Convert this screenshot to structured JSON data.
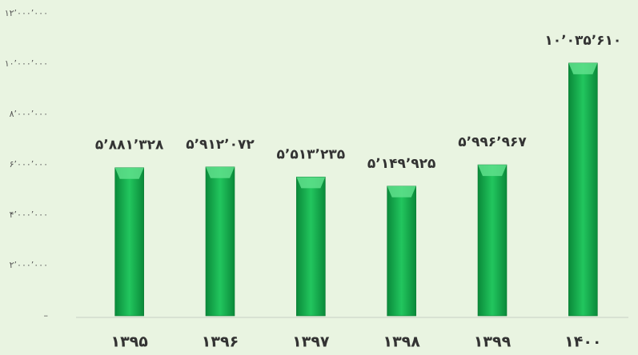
{
  "chart_data": {
    "type": "bar",
    "categories": [
      "۱۳۹۵",
      "۱۳۹۶",
      "۱۳۹۷",
      "۱۳۹۸",
      "۱۳۹۹",
      "۱۴۰۰"
    ],
    "values": [
      5881328,
      5912072,
      5513235,
      5149925,
      5996967,
      10035610
    ],
    "value_labels": [
      "۵٬۸۸۱٬۳۲۸",
      "۵٬۹۱۲٬۰۷۲",
      "۵٬۵۱۳٬۲۳۵",
      "۵٬۱۴۹٬۹۲۵",
      "۵٬۹۹۶٬۹۶۷",
      "۱۰٬۰۳۵٬۶۱۰"
    ],
    "color": "#1db954",
    "ylim": [
      0,
      12000000
    ],
    "yticks": [
      {
        "value": 0,
        "label": "–"
      },
      {
        "value": 2000000,
        "label": "۲٬۰۰۰٬۰۰۰"
      },
      {
        "value": 4000000,
        "label": "۴٬۰۰۰٬۰۰۰"
      },
      {
        "value": 6000000,
        "label": "۶٬۰۰۰٬۰۰۰"
      },
      {
        "value": 8000000,
        "label": "۸٬۰۰۰٬۰۰۰"
      },
      {
        "value": 10000000,
        "label": "۱۰٬۰۰۰٬۰۰۰"
      },
      {
        "value": 12000000,
        "label": "۱۲٬۰۰۰٬۰۰۰"
      }
    ],
    "grid": false
  }
}
